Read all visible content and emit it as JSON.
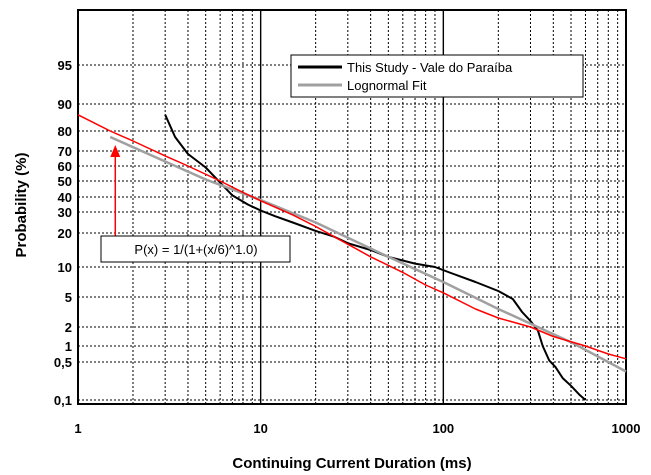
{
  "chart_data": {
    "type": "line",
    "xlabel": "Continuing Current Duration (ms)",
    "ylabel": "Probability (%)",
    "x_scale": "log",
    "y_scale": "lognormal-probability",
    "xlim": [
      1,
      1000
    ],
    "ylim": [
      0.1,
      95
    ],
    "x_ticks": [
      1,
      10,
      100,
      1000
    ],
    "x_tick_labels": [
      "1",
      "10",
      "100",
      "1000"
    ],
    "y_ticks": [
      0.1,
      0.5,
      1,
      2,
      5,
      10,
      20,
      30,
      40,
      50,
      60,
      70,
      80,
      90,
      95
    ],
    "y_tick_labels": [
      "0,1",
      "0,5",
      "1",
      "2",
      "5",
      "10",
      "20",
      "30",
      "40",
      "50",
      "60",
      "70",
      "80",
      "90",
      "95"
    ],
    "grid": true,
    "legend_position": "top-right",
    "series": [
      {
        "name": "This Study - Vale do Paraíba",
        "color": "#000000",
        "points": [
          [
            3.0,
            86
          ],
          [
            3.4,
            77
          ],
          [
            4.0,
            68
          ],
          [
            5.0,
            59
          ],
          [
            6.0,
            49
          ],
          [
            7.0,
            41
          ],
          [
            8.5,
            35
          ],
          [
            10,
            31
          ],
          [
            12,
            28
          ],
          [
            15,
            25
          ],
          [
            20,
            21
          ],
          [
            25,
            19
          ],
          [
            30,
            17
          ],
          [
            40,
            15
          ],
          [
            50,
            13
          ],
          [
            70,
            11
          ],
          [
            90,
            10
          ],
          [
            110,
            9
          ],
          [
            150,
            7.5
          ],
          [
            200,
            6
          ],
          [
            240,
            4.8
          ],
          [
            270,
            3.5
          ],
          [
            300,
            2.6
          ],
          [
            330,
            1.8
          ],
          [
            350,
            1.0
          ],
          [
            380,
            0.55
          ],
          [
            410,
            0.45
          ],
          [
            450,
            0.33
          ],
          [
            500,
            0.25
          ],
          [
            560,
            0.15
          ],
          [
            600,
            0.1
          ]
        ]
      },
      {
        "name": "Lognormal Fit",
        "color": "#a0a0a0",
        "points": [
          [
            1.5,
            77
          ],
          [
            3,
            63
          ],
          [
            5,
            51
          ],
          [
            10,
            38
          ],
          [
            20,
            25
          ],
          [
            50,
            13
          ],
          [
            100,
            7.5
          ],
          [
            200,
            3.8
          ],
          [
            500,
            1.2
          ],
          [
            1000,
            0.4
          ]
        ]
      },
      {
        "name": "",
        "color": "#ff0000",
        "points": [
          [
            1,
            86
          ],
          [
            1.5,
            80
          ],
          [
            2,
            75
          ],
          [
            3,
            66.7
          ],
          [
            4,
            60
          ],
          [
            6,
            50
          ],
          [
            8,
            42.9
          ],
          [
            10,
            37.5
          ],
          [
            15,
            28.6
          ],
          [
            20,
            23.1
          ],
          [
            30,
            16.7
          ],
          [
            40,
            13
          ],
          [
            60,
            9.1
          ],
          [
            80,
            7
          ],
          [
            100,
            5.7
          ],
          [
            150,
            3.8
          ],
          [
            200,
            2.9
          ],
          [
            300,
            2.0
          ],
          [
            400,
            1.5
          ],
          [
            600,
            1.0
          ],
          [
            800,
            0.75
          ],
          [
            1000,
            0.6
          ]
        ]
      }
    ],
    "annotations": [
      {
        "text": "P(x) = 1/(1+(x/6)^1.0)",
        "arrow_from": [
          1.6,
          11
        ],
        "arrow_to": [
          1.6,
          72
        ]
      }
    ]
  }
}
